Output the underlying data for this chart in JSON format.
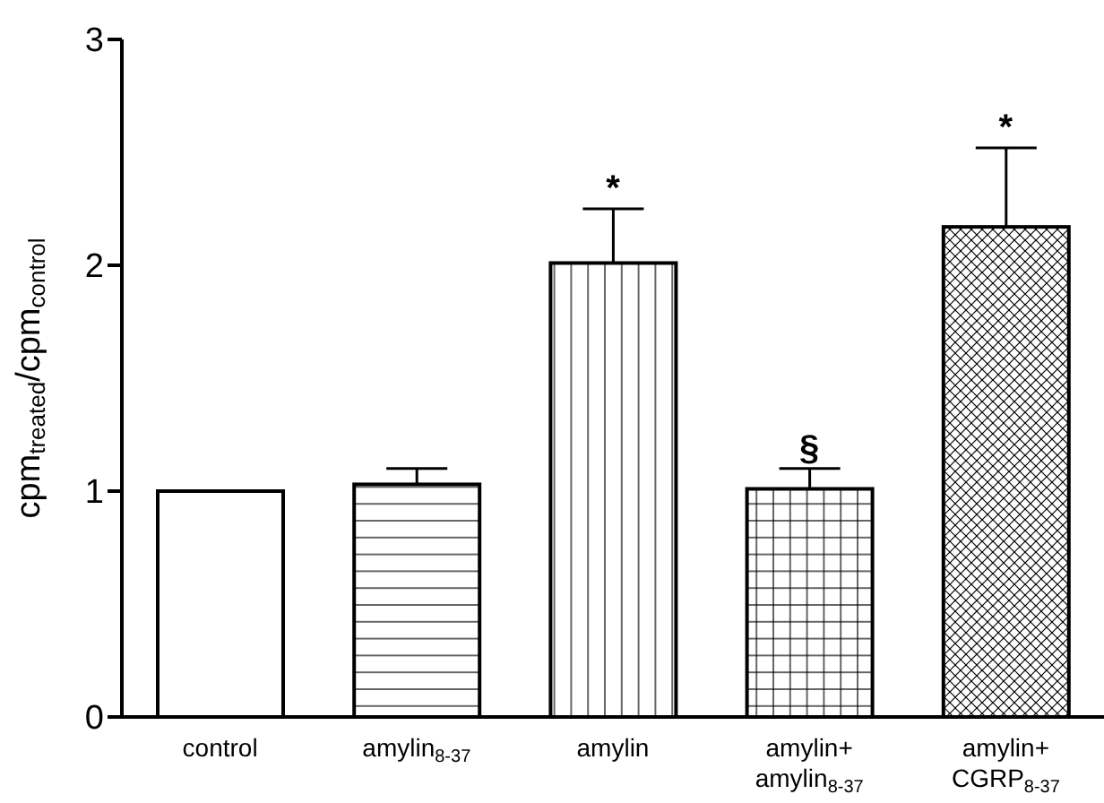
{
  "chart_data": {
    "type": "bar",
    "ylabel": "cpm$_{treated}$/cpm$_{control}$",
    "categories": [
      "control",
      "amylin$_{8-37}$",
      "amylin",
      "amylin+ amylin$_{8-37}$",
      "amylin+ CGRP$_{8-37}$"
    ],
    "values": [
      1.0,
      1.03,
      2.01,
      1.01,
      2.17
    ],
    "errors": [
      null,
      [
        1.03,
        1.1
      ],
      [
        2.01,
        2.25
      ],
      [
        1.01,
        1.1
      ],
      [
        2.17,
        2.52
      ]
    ],
    "colors": [
      "#000000",
      "#000000",
      "#000000",
      "#000000",
      "#000000"
    ],
    "ylim": [
      0,
      3
    ],
    "yticks": [
      0,
      1,
      2,
      3
    ],
    "grid": false,
    "legend": false,
    "annotations": [
      {
        "text": "*",
        "x": "amylin",
        "y": 2.25
      },
      {
        "text": "§",
        "x": "amylin+ amylin$_{8-37}$",
        "y": 1.1
      },
      {
        "text": "*",
        "x": "amylin+ CGRP$_{8-37}$",
        "y": 2.52
      }
    ]
  }
}
